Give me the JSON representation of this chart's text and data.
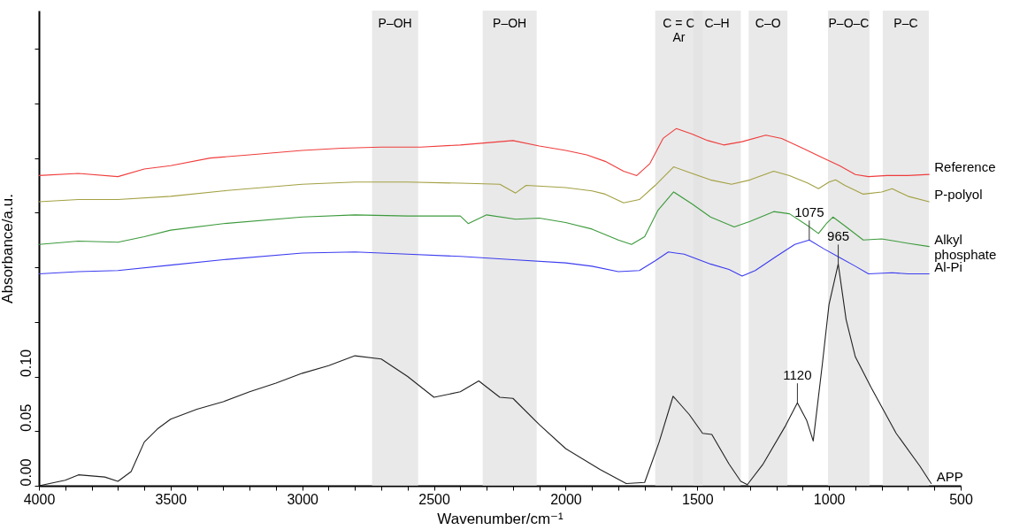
{
  "chart_data": {
    "type": "line",
    "xlabel": "Wavenumber/cm⁻¹",
    "ylabel": "Absorbance/a.u.",
    "xlim": [
      4000,
      500
    ],
    "xticks": [
      4000,
      {
        "value": 3900,
        "label": null
      },
      {
        "value": 3800,
        "label": null
      },
      {
        "value": 3700,
        "label": null
      },
      {
        "value": 3600,
        "label": null
      },
      3500,
      {
        "value": 3400,
        "label": null
      },
      {
        "value": 3300,
        "label": null
      },
      {
        "value": 3200,
        "label": null
      },
      {
        "value": 3100,
        "label": null
      },
      3000,
      {
        "value": 2900,
        "label": null
      },
      {
        "value": 2800,
        "label": null
      },
      {
        "value": 2700,
        "label": null
      },
      {
        "value": 2600,
        "label": null
      },
      2500,
      {
        "value": 2400,
        "label": null
      },
      {
        "value": 2300,
        "label": null
      },
      {
        "value": 2200,
        "label": null
      },
      {
        "value": 2100,
        "label": null
      },
      2000,
      {
        "value": 1900,
        "label": null
      },
      {
        "value": 1800,
        "label": null
      },
      {
        "value": 1700,
        "label": null
      },
      {
        "value": 1600,
        "label": null
      },
      1500,
      {
        "value": 1400,
        "label": null
      },
      {
        "value": 1300,
        "label": null
      },
      {
        "value": 1200,
        "label": null
      },
      {
        "value": 1100,
        "label": null
      },
      1000,
      {
        "value": 900,
        "label": null
      },
      {
        "value": 800,
        "label": null
      },
      {
        "value": 700,
        "label": null
      },
      {
        "value": 600,
        "label": null
      },
      500
    ],
    "ylim": [
      0,
      0.435
    ],
    "yticks": [
      {
        "value": 0,
        "label": "0.00"
      },
      {
        "value": 0.05,
        "label": "0.05"
      },
      {
        "value": 0.1,
        "label": "0.10"
      },
      {
        "value": 0.15,
        "label": null
      },
      {
        "value": 0.2,
        "label": null
      },
      {
        "value": 0.25,
        "label": null
      },
      {
        "value": 0.3,
        "label": null
      },
      {
        "value": 0.35,
        "label": null
      },
      {
        "value": 0.4,
        "label": null
      }
    ],
    "grid": false,
    "legend": false,
    "line_style": "solid",
    "series": [
      {
        "name": "Reference",
        "color": "#f03c3c",
        "x": [
          4000,
          3850,
          3700,
          3600,
          3500,
          3350,
          3200,
          3000,
          2850,
          2700,
          2550,
          2400,
          2300,
          2200,
          2100,
          2000,
          1920,
          1850,
          1780,
          1730,
          1680,
          1630,
          1580,
          1520,
          1460,
          1400,
          1330,
          1240,
          1180,
          1100,
          1030,
          960,
          900,
          850,
          780,
          700,
          620
        ],
        "values": [
          0.284,
          0.286,
          0.283,
          0.29,
          0.293,
          0.3,
          0.303,
          0.307,
          0.309,
          0.31,
          0.31,
          0.312,
          0.314,
          0.316,
          0.311,
          0.307,
          0.303,
          0.297,
          0.288,
          0.284,
          0.295,
          0.318,
          0.327,
          0.322,
          0.316,
          0.312,
          0.315,
          0.321,
          0.318,
          0.309,
          0.301,
          0.293,
          0.285,
          0.283,
          0.284,
          0.284,
          0.285
        ]
      },
      {
        "name": "P-polyol",
        "color": "#a3a042",
        "x": [
          4000,
          3850,
          3700,
          3500,
          3300,
          3000,
          2800,
          2600,
          2400,
          2250,
          2190,
          2150,
          2000,
          1900,
          1850,
          1780,
          1720,
          1660,
          1590,
          1520,
          1450,
          1370,
          1300,
          1210,
          1150,
          1080,
          1040,
          1000,
          975,
          940,
          870,
          800,
          760,
          700,
          620
        ],
        "values": [
          0.26,
          0.262,
          0.262,
          0.265,
          0.27,
          0.276,
          0.278,
          0.278,
          0.277,
          0.276,
          0.268,
          0.275,
          0.273,
          0.27,
          0.267,
          0.259,
          0.262,
          0.275,
          0.292,
          0.286,
          0.28,
          0.276,
          0.28,
          0.288,
          0.284,
          0.277,
          0.272,
          0.278,
          0.28,
          0.275,
          0.267,
          0.269,
          0.272,
          0.265,
          0.26
        ]
      },
      {
        "name": "Alkyl phosphate",
        "color": "#3c9a3c",
        "x": [
          4000,
          3850,
          3700,
          3600,
          3500,
          3300,
          3000,
          2800,
          2600,
          2400,
          2370,
          2300,
          2190,
          2100,
          2000,
          1900,
          1800,
          1750,
          1700,
          1650,
          1590,
          1520,
          1450,
          1360,
          1300,
          1210,
          1150,
          1080,
          1040,
          1010,
          985,
          940,
          870,
          800,
          700,
          620
        ],
        "values": [
          0.221,
          0.224,
          0.223,
          0.228,
          0.234,
          0.24,
          0.246,
          0.248,
          0.247,
          0.247,
          0.24,
          0.248,
          0.244,
          0.245,
          0.241,
          0.235,
          0.225,
          0.221,
          0.228,
          0.252,
          0.269,
          0.258,
          0.246,
          0.237,
          0.242,
          0.251,
          0.249,
          0.238,
          0.231,
          0.24,
          0.246,
          0.238,
          0.225,
          0.226,
          0.222,
          0.219
        ]
      },
      {
        "name": "Al-Pi",
        "color": "#3c3cf0",
        "x": [
          4000,
          3850,
          3700,
          3500,
          3300,
          3000,
          2800,
          2600,
          2400,
          2200,
          2000,
          1900,
          1800,
          1720,
          1660,
          1610,
          1550,
          1450,
          1380,
          1330,
          1280,
          1200,
          1130,
          1075,
          1020,
          960,
          900,
          850,
          760,
          700,
          620
        ],
        "values": [
          0.194,
          0.196,
          0.197,
          0.202,
          0.207,
          0.213,
          0.214,
          0.212,
          0.21,
          0.207,
          0.204,
          0.201,
          0.196,
          0.197,
          0.206,
          0.214,
          0.212,
          0.203,
          0.198,
          0.192,
          0.197,
          0.21,
          0.221,
          0.225,
          0.217,
          0.209,
          0.201,
          0.194,
          0.195,
          0.194,
          0.194
        ]
      },
      {
        "name": "APP",
        "color": "#222222",
        "x": [
          4000,
          3900,
          3850,
          3750,
          3700,
          3650,
          3600,
          3550,
          3500,
          3400,
          3300,
          3200,
          3100,
          3000,
          2900,
          2800,
          2700,
          2600,
          2500,
          2400,
          2330,
          2250,
          2200,
          2100,
          2000,
          1870,
          1770,
          1700,
          1645,
          1592,
          1530,
          1480,
          1445,
          1380,
          1335,
          1310,
          1250,
          1165,
          1120,
          1085,
          1060,
          1025,
          1000,
          965,
          935,
          900,
          840,
          745,
          655,
          612
        ],
        "values": [
          0.0,
          0.005,
          0.01,
          0.008,
          0.004,
          0.013,
          0.04,
          0.052,
          0.061,
          0.07,
          0.077,
          0.086,
          0.094,
          0.103,
          0.11,
          0.119,
          0.116,
          0.1,
          0.081,
          0.086,
          0.096,
          0.081,
          0.08,
          0.056,
          0.034,
          0.015,
          0.002,
          0.003,
          0.04,
          0.082,
          0.065,
          0.048,
          0.047,
          0.02,
          0.004,
          0.001,
          0.02,
          0.055,
          0.076,
          0.06,
          0.041,
          0.112,
          0.166,
          0.203,
          0.152,
          0.118,
          0.09,
          0.048,
          0.018,
          0.002
        ]
      }
    ],
    "bands": [
      {
        "axis": "x",
        "from": 2735,
        "to": 2560,
        "label": "P–OH",
        "color": "#e2e2e2"
      },
      {
        "axis": "x",
        "from": 2315,
        "to": 2110,
        "label": "P–OH",
        "color": "#e2e2e2"
      },
      {
        "axis": "x",
        "from": 1660,
        "to": 1480,
        "label": "C = C\nAr",
        "color": "#e2e2e2"
      },
      {
        "axis": "x",
        "from": 1515,
        "to": 1335,
        "label": "C–H",
        "color": "#e2e2e2"
      },
      {
        "axis": "x",
        "from": 1305,
        "to": 1158,
        "label": "C–O",
        "color": "#e2e2e2"
      },
      {
        "axis": "x",
        "from": 1004,
        "to": 846,
        "label": "P–O–C",
        "color": "#e2e2e2"
      },
      {
        "axis": "x",
        "from": 796,
        "to": 621,
        "label": "P–C",
        "color": "#e2e2e2"
      }
    ],
    "annotations": [
      {
        "text": "1075",
        "x": 1075,
        "y": 0.225
      },
      {
        "text": "965",
        "x": 965,
        "y": 0.203
      },
      {
        "text": "1120",
        "x": 1120,
        "y": 0.076
      }
    ]
  }
}
